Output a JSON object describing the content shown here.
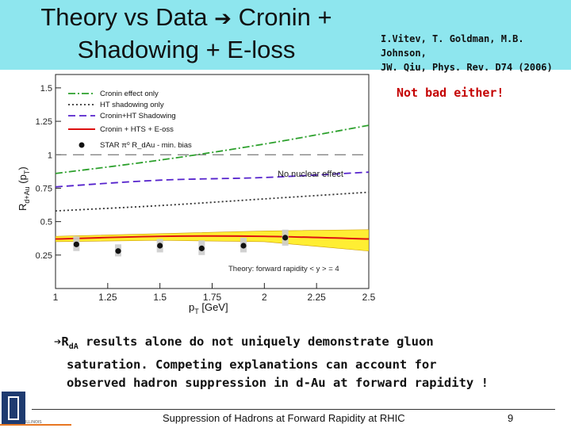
{
  "slide": {
    "title_line1_a": "Theory vs Data ",
    "title_arrow": "➔",
    "title_line1_b": " Cronin +",
    "title_line2": "Shadowing + E-loss",
    "ref_line1": "I.Vitev, T. Goldman, M.B. Johnson,",
    "ref_line2": "JW. Qiu, Phys. Rev. D74 (2006)",
    "note": "Not bad either!",
    "conclusion_arrow": "➔",
    "conclusion_r": "R",
    "conclusion_sub": "dA",
    "conclusion_line1": " results alone do not uniquely demonstrate gluon",
    "conclusion_line2": "saturation. Competing explanations can account for",
    "conclusion_line3": "observed hadron suppression in d-Au at forward rapidity !",
    "footer": "Suppression of Hadrons at Forward Rapidity at RHIC",
    "page_number": "9",
    "logo_text": "ILLINOIS"
  },
  "colors": {
    "header_bg": "#8ee6ee",
    "note": "#c40000",
    "cronin": "#2ca02c",
    "ht": "#333333",
    "cronin_ht": "#5522cc",
    "full": "#dd1111",
    "band": "#ffee33",
    "data": "#111111"
  },
  "chart_data": {
    "type": "line",
    "xlabel": "p",
    "xlabel_sub": "T",
    "xlabel_unit": " [GeV]",
    "ylabel": "R",
    "ylabel_sub": "d+Au",
    "ylabel_paren": " (p",
    "ylabel_paren_sub": "T",
    "ylabel_close": ")",
    "xlim": [
      1,
      2.5
    ],
    "ylim": [
      0,
      1.6
    ],
    "x_ticks": [
      "1",
      "1.25",
      "1.5",
      "1.75",
      "2",
      "2.25",
      "2.5"
    ],
    "x_tick_values": [
      1,
      1.25,
      1.5,
      1.75,
      2,
      2.25,
      2.5
    ],
    "y_ticks": [
      "0.25",
      "0.5",
      "0.75",
      "1",
      "1.25",
      "1.5"
    ],
    "y_tick_values": [
      0.25,
      0.5,
      0.75,
      1,
      1.25,
      1.5
    ],
    "reference_line": {
      "y": 1.0,
      "label": "No nuclear effect"
    },
    "annotation": "Theory: forward rapidity < y > = 4",
    "series": [
      {
        "name": "Cronin effect only",
        "style": "dashdot",
        "x": [
          1,
          1.5,
          2,
          2.5
        ],
        "y": [
          0.86,
          0.96,
          1.08,
          1.22
        ]
      },
      {
        "name": "HT shadowing only",
        "style": "dotted",
        "x": [
          1,
          1.5,
          2,
          2.5
        ],
        "y": [
          0.58,
          0.62,
          0.67,
          0.72
        ]
      },
      {
        "name": "Cronin+HT Shadowing",
        "style": "dashed",
        "x": [
          1,
          1.5,
          2,
          2.5
        ],
        "y": [
          0.76,
          0.81,
          0.83,
          0.87
        ]
      },
      {
        "name": "Cronin + HTS + E-oss",
        "style": "solid",
        "x": [
          1,
          1.5,
          2,
          2.5
        ],
        "y": [
          0.37,
          0.39,
          0.39,
          0.37
        ]
      }
    ],
    "band": {
      "x": [
        1,
        1.5,
        2,
        2.5
      ],
      "lower": [
        0.35,
        0.36,
        0.35,
        0.28
      ],
      "upper": [
        0.39,
        0.41,
        0.43,
        0.44
      ]
    },
    "data_points": {
      "name": "STAR π⁰ R_dAu - min. bias",
      "x": [
        1.1,
        1.3,
        1.5,
        1.7,
        1.9,
        2.1
      ],
      "y": [
        0.33,
        0.28,
        0.32,
        0.3,
        0.32,
        0.38
      ],
      "sys_low": [
        0.28,
        0.24,
        0.27,
        0.25,
        0.27,
        0.32
      ],
      "sys_high": [
        0.39,
        0.33,
        0.37,
        0.36,
        0.38,
        0.44
      ]
    }
  }
}
